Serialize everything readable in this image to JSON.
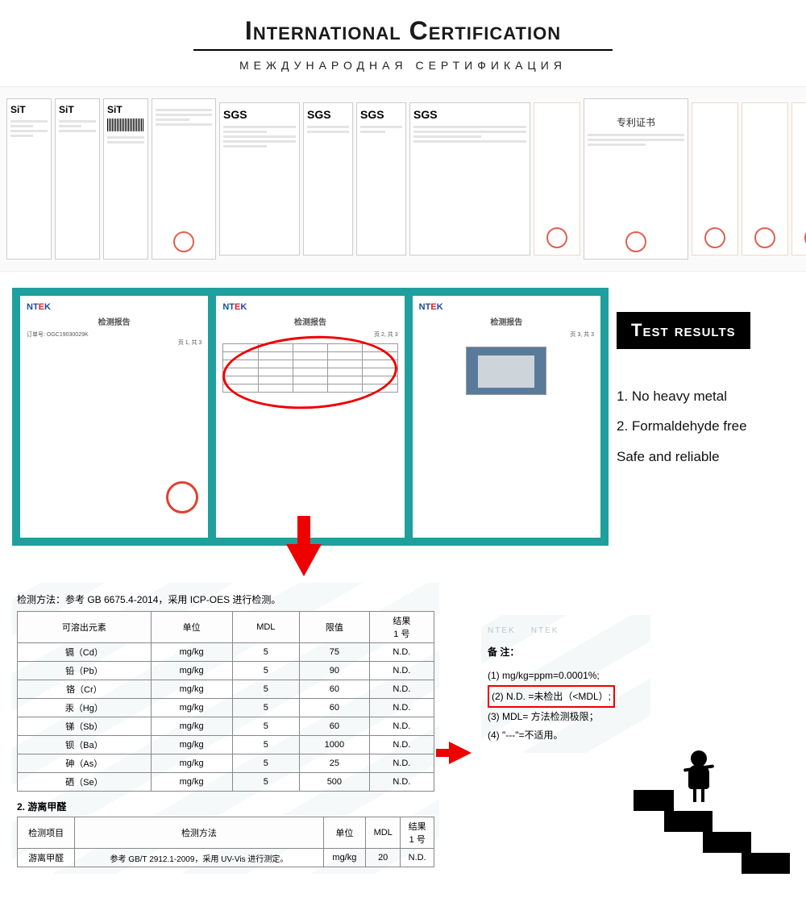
{
  "header": {
    "title": "International Certification",
    "subtitle": "Международная сертификация"
  },
  "cert_logos": {
    "sit": "SiT",
    "sgs": "SGS",
    "cn_label": "专利证书"
  },
  "reports": {
    "ntek": "NTEK",
    "title": "检测报告",
    "code_prefix": "订单号: OGC19030029K",
    "page1": "页 1, 共 3",
    "page2": "页 2, 共 3",
    "page3": "页 3, 共 3"
  },
  "results_panel": {
    "heading": "Test results",
    "items": [
      "1. No heavy metal",
      "2. Formaldehyde free",
      "Safe and reliable"
    ]
  },
  "table1": {
    "caption": "检测方法：参考 GB 6675.4-2014，采用 ICP-OES 进行检测。",
    "headers": [
      "可溶出元素",
      "单位",
      "MDL",
      "限值",
      "结果\n1 号"
    ],
    "rows": [
      [
        "镉（Cd）",
        "mg/kg",
        "5",
        "75",
        "N.D."
      ],
      [
        "铅（Pb）",
        "mg/kg",
        "5",
        "90",
        "N.D."
      ],
      [
        "铬（Cr）",
        "mg/kg",
        "5",
        "60",
        "N.D."
      ],
      [
        "汞（Hg）",
        "mg/kg",
        "5",
        "60",
        "N.D."
      ],
      [
        "锑（Sb）",
        "mg/kg",
        "5",
        "60",
        "N.D."
      ],
      [
        "钡（Ba）",
        "mg/kg",
        "5",
        "1000",
        "N.D."
      ],
      [
        "砷（As）",
        "mg/kg",
        "5",
        "25",
        "N.D."
      ],
      [
        "硒（Se）",
        "mg/kg",
        "5",
        "500",
        "N.D."
      ]
    ]
  },
  "table2": {
    "section": "2. 游离甲醛",
    "headers": [
      "检测项目",
      "检测方法",
      "单位",
      "MDL",
      "结果\n1 号"
    ],
    "row": [
      "游离甲醛",
      "参考 GB/T 2912.1-2009，采用 UV-Vis 进行测定。",
      "mg/kg",
      "20",
      "N.D."
    ]
  },
  "notes": {
    "title": "备 注：",
    "items": [
      "(1) mg/kg=ppm=0.0001%;",
      "(2) N.D. =未检出（<MDL）;",
      "(3) MDL= 方法检测极限；",
      "(4) \"---\"=不适用。"
    ]
  },
  "colors": {
    "teal": "#1f9f9e",
    "red": "#e00000",
    "black": "#000000"
  }
}
